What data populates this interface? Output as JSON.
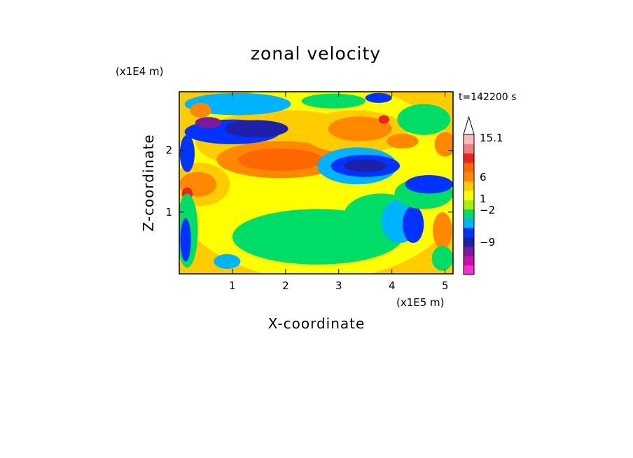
{
  "chart_data": {
    "type": "heatmap",
    "title": "zonal velocity",
    "xlabel": "X-coordinate",
    "ylabel": "Z-coordinate",
    "x_multiplier": "(x1E5 m)",
    "y_multiplier": "(x1E4 m)",
    "time_label": "t=142200 s",
    "xlim": [
      0,
      5.15
    ],
    "ylim": [
      0,
      2.95
    ],
    "x_ticks": [
      {
        "value": 1,
        "label": "1"
      },
      {
        "value": 2,
        "label": "2"
      },
      {
        "value": 3,
        "label": "3"
      },
      {
        "value": 4,
        "label": "4"
      },
      {
        "value": 5,
        "label": "5"
      }
    ],
    "y_ticks": [
      {
        "value": 1,
        "label": "1"
      },
      {
        "value": 2,
        "label": "2"
      }
    ],
    "colorbar": {
      "labels": [
        {
          "value": 15.1,
          "label": "15.1"
        },
        {
          "value": 6,
          "label": "6"
        },
        {
          "value": 1,
          "label": "1"
        },
        {
          "value": -2,
          "label": "−2"
        },
        {
          "value": -9,
          "label": "−9"
        }
      ],
      "levels": [
        {
          "color": "#ff2ed0"
        },
        {
          "color": "#cc11aa"
        },
        {
          "color": "#7a1a9e"
        },
        {
          "color": "#1e20a8"
        },
        {
          "color": "#0033ff"
        },
        {
          "color": "#00b3ff"
        },
        {
          "color": "#00dd66"
        },
        {
          "color": "#aaee00"
        },
        {
          "color": "#ffff00"
        },
        {
          "color": "#ffcc00"
        },
        {
          "color": "#ff8800"
        },
        {
          "color": "#ff6600"
        },
        {
          "color": "#ee2222"
        },
        {
          "color": "#f08080"
        },
        {
          "color": "#ffbbbb"
        }
      ],
      "overflow_color": "#ffffff"
    },
    "regions": [
      {
        "color": "#ffff00",
        "cx": 2.6,
        "cy": 1.5,
        "rx": 2.8,
        "ry": 1.6
      },
      {
        "color": "#00dd66",
        "cx": 2.6,
        "cy": 0.6,
        "rx": 1.6,
        "ry": 0.45
      },
      {
        "color": "#00dd66",
        "cx": 3.8,
        "cy": 0.95,
        "rx": 0.7,
        "ry": 0.35
      },
      {
        "color": "#00b3ff",
        "cx": 4.15,
        "cy": 0.85,
        "rx": 0.35,
        "ry": 0.35
      },
      {
        "color": "#0033ff",
        "cx": 4.4,
        "cy": 0.8,
        "rx": 0.2,
        "ry": 0.3
      },
      {
        "color": "#ffcc00",
        "cx": 2.0,
        "cy": 2.15,
        "rx": 1.7,
        "ry": 0.5
      },
      {
        "color": "#ff8800",
        "cx": 1.9,
        "cy": 1.85,
        "rx": 1.2,
        "ry": 0.3
      },
      {
        "color": "#ff6600",
        "cx": 1.9,
        "cy": 1.85,
        "rx": 0.8,
        "ry": 0.18
      },
      {
        "color": "#ffcc00",
        "cx": 0.4,
        "cy": 1.45,
        "rx": 0.55,
        "ry": 0.35
      },
      {
        "color": "#ff8800",
        "cx": 0.35,
        "cy": 1.45,
        "rx": 0.35,
        "ry": 0.2
      },
      {
        "color": "#ee2222",
        "cx": 0.15,
        "cy": 1.3,
        "rx": 0.1,
        "ry": 0.1
      },
      {
        "color": "#00b3ff",
        "cx": 1.1,
        "cy": 2.75,
        "rx": 1.0,
        "ry": 0.18
      },
      {
        "color": "#0033ff",
        "cx": 1.0,
        "cy": 2.3,
        "rx": 0.9,
        "ry": 0.2
      },
      {
        "color": "#1e20a8",
        "cx": 1.45,
        "cy": 2.35,
        "rx": 0.6,
        "ry": 0.14
      },
      {
        "color": "#7a1a9e",
        "cx": 0.55,
        "cy": 2.45,
        "rx": 0.25,
        "ry": 0.09
      },
      {
        "color": "#ffcc00",
        "cx": 3.3,
        "cy": 2.3,
        "rx": 1.0,
        "ry": 0.35
      },
      {
        "color": "#ff8800",
        "cx": 3.4,
        "cy": 2.35,
        "rx": 0.6,
        "ry": 0.2
      },
      {
        "color": "#ee2222",
        "cx": 3.85,
        "cy": 2.5,
        "rx": 0.1,
        "ry": 0.07
      },
      {
        "color": "#00b3ff",
        "cx": 3.35,
        "cy": 1.75,
        "rx": 0.75,
        "ry": 0.3
      },
      {
        "color": "#0033ff",
        "cx": 3.5,
        "cy": 1.75,
        "rx": 0.65,
        "ry": 0.18
      },
      {
        "color": "#1e20a8",
        "cx": 3.5,
        "cy": 1.75,
        "rx": 0.4,
        "ry": 0.1
      },
      {
        "color": "#00dd66",
        "cx": 2.9,
        "cy": 2.8,
        "rx": 0.6,
        "ry": 0.12
      },
      {
        "color": "#0033ff",
        "cx": 3.75,
        "cy": 2.85,
        "rx": 0.25,
        "ry": 0.08
      },
      {
        "color": "#00dd66",
        "cx": 4.6,
        "cy": 2.5,
        "rx": 0.5,
        "ry": 0.25
      },
      {
        "color": "#00dd66",
        "cx": 4.6,
        "cy": 1.3,
        "rx": 0.55,
        "ry": 0.25
      },
      {
        "color": "#0033ff",
        "cx": 4.7,
        "cy": 1.45,
        "rx": 0.45,
        "ry": 0.15
      },
      {
        "color": "#00dd66",
        "cx": 0.15,
        "cy": 0.7,
        "rx": 0.2,
        "ry": 0.6
      },
      {
        "color": "#0033ff",
        "cx": 0.12,
        "cy": 0.55,
        "rx": 0.1,
        "ry": 0.35
      },
      {
        "color": "#00b3ff",
        "cx": 0.9,
        "cy": 0.2,
        "rx": 0.25,
        "ry": 0.12
      },
      {
        "color": "#0033ff",
        "cx": 0.15,
        "cy": 1.95,
        "rx": 0.14,
        "ry": 0.3
      },
      {
        "color": "#ff8800",
        "cx": 0.4,
        "cy": 2.65,
        "rx": 0.2,
        "ry": 0.12
      },
      {
        "color": "#ff8800",
        "cx": 4.2,
        "cy": 2.15,
        "rx": 0.3,
        "ry": 0.12
      },
      {
        "color": "#ff8800",
        "cx": 5.0,
        "cy": 2.1,
        "rx": 0.2,
        "ry": 0.2
      },
      {
        "color": "#ff8800",
        "cx": 4.95,
        "cy": 0.7,
        "rx": 0.18,
        "ry": 0.3
      },
      {
        "color": "#00dd66",
        "cx": 4.95,
        "cy": 0.25,
        "rx": 0.2,
        "ry": 0.2
      }
    ]
  }
}
